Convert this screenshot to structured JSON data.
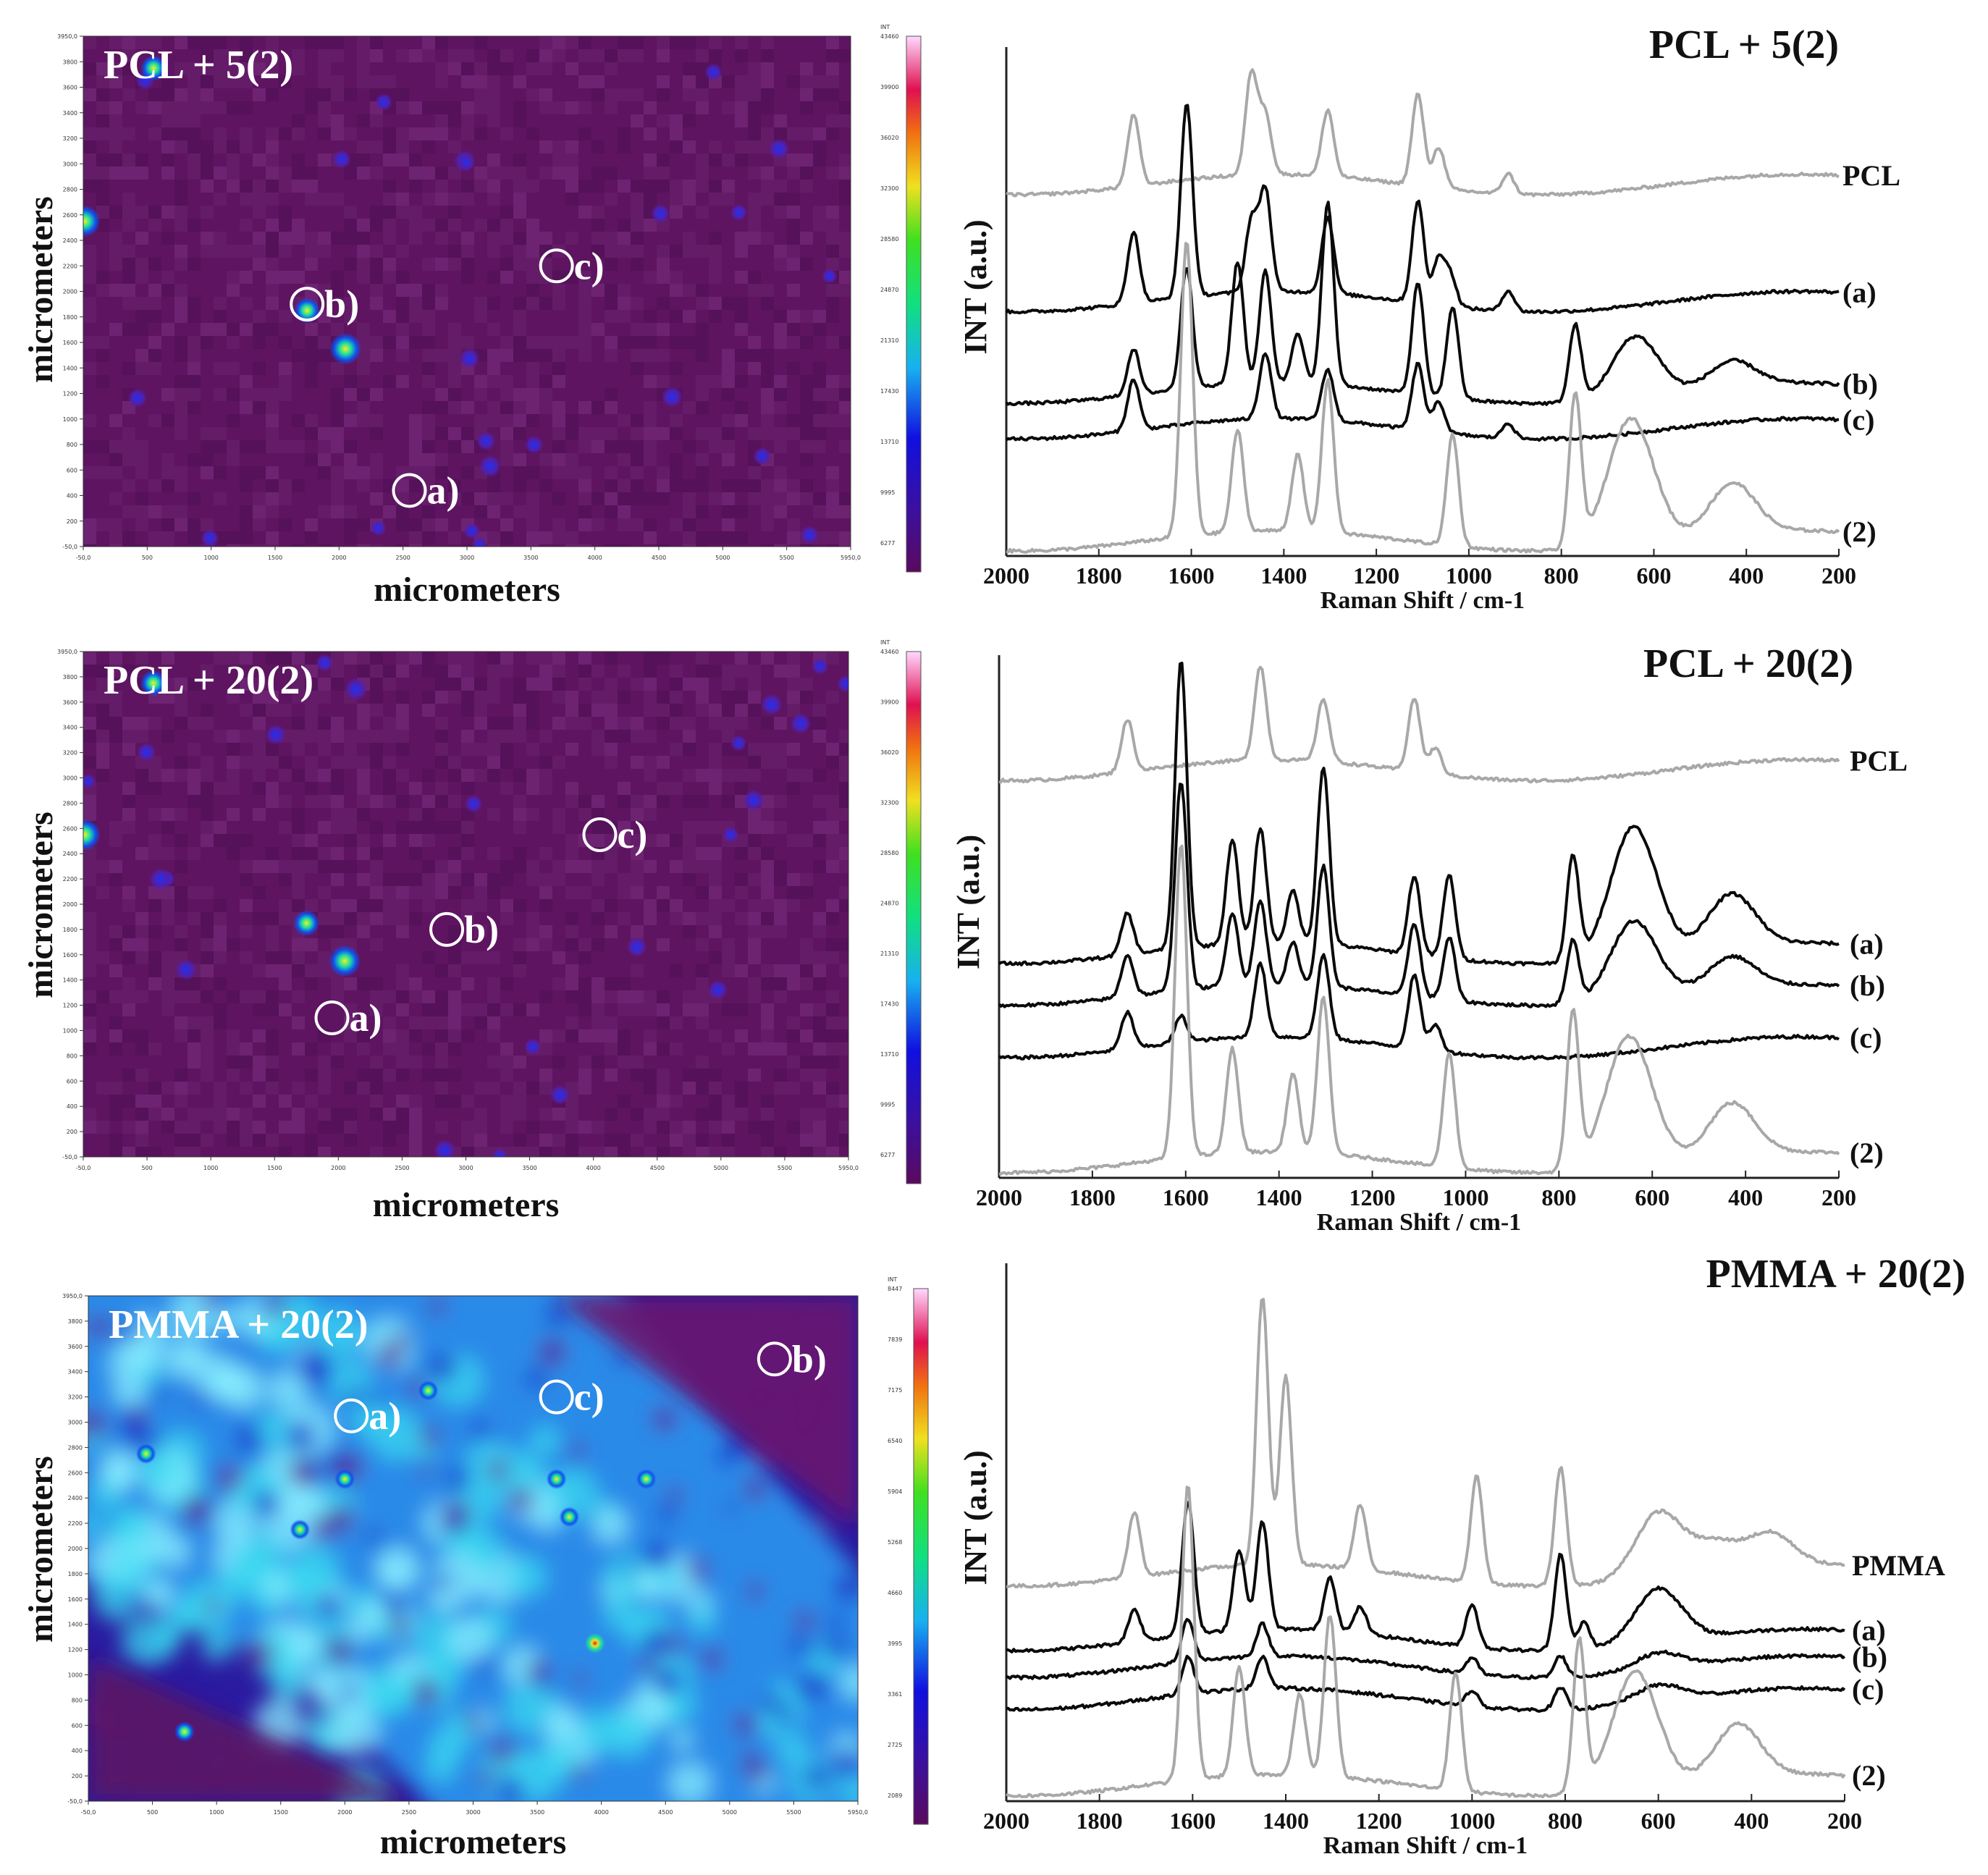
{
  "figure": {
    "map_axis_label": "micrometers",
    "spectrum_ylabel": "INT (a.u.)",
    "spectrum_xlabel": "Raman Shift / cm-1",
    "colorbar_header": "INT",
    "colors": {
      "map_bg": "#5e1460",
      "map_bg_dark": "#4a0c50",
      "spec_black": "#0a0a0a",
      "spec_gray": "#a8a8a8",
      "pmma_cyan": "#38d8f0",
      "pmma_blue": "#1a3cd8"
    }
  },
  "chart_data": [
    {
      "type": "heatmap",
      "title": "PCL + 5(2)",
      "xlabel": "micrometers",
      "ylabel": "micrometers",
      "x_ticks": [
        "-50,0",
        "500",
        "1000",
        "1500",
        "2000",
        "2500",
        "3000",
        "3500",
        "4000",
        "4500",
        "5000",
        "5500",
        "5950,0"
      ],
      "y_ticks": [
        "3950,0",
        "3800",
        "3600",
        "3400",
        "3200",
        "3000",
        "2800",
        "2600",
        "2400",
        "2200",
        "2000",
        "1800",
        "1600",
        "1400",
        "1200",
        "1000",
        "800",
        "600",
        "400",
        "200",
        "-50,0"
      ],
      "colorbar_ticks": [
        "43460",
        "39900",
        "36020",
        "32300",
        "28580",
        "24870",
        "21310",
        "17430",
        "13710",
        "9995",
        "6277"
      ],
      "points": [
        {
          "label": "a)",
          "x": 2500,
          "y": 390
        },
        {
          "label": "b)",
          "x": 1700,
          "y": 1850
        },
        {
          "label": "c)",
          "x": 3650,
          "y": 2150
        }
      ]
    },
    {
      "type": "line",
      "title": "PCL + 5(2)",
      "xlabel": "Raman Shift / cm-1",
      "ylabel": "INT (a.u.)",
      "x_ticks": [
        "2000",
        "1800",
        "1600",
        "1400",
        "1200",
        "1000",
        "800",
        "600",
        "400",
        "200"
      ],
      "xlim": [
        2000,
        200
      ],
      "series": [
        {
          "name": "PCL",
          "color": "gray",
          "offset": 0.73,
          "peaks": [
            [
              1725,
              0.14
            ],
            [
              1470,
              0.2
            ],
            [
              1440,
              0.12
            ],
            [
              1305,
              0.13
            ],
            [
              1110,
              0.18
            ],
            [
              1065,
              0.08
            ],
            [
              915,
              0.04
            ]
          ]
        },
        {
          "name": "(a)",
          "color": "black",
          "offset": 0.5,
          "peaks": [
            [
              1725,
              0.14
            ],
            [
              1610,
              0.38
            ],
            [
              1440,
              0.2
            ],
            [
              1470,
              0.14
            ],
            [
              1305,
              0.15
            ],
            [
              1110,
              0.2
            ],
            [
              1065,
              0.09
            ],
            [
              1040,
              0.06
            ],
            [
              915,
              0.04
            ]
          ]
        },
        {
          "name": "(b)",
          "color": "black",
          "offset": 0.32,
          "peaks": [
            [
              1725,
              0.09
            ],
            [
              1610,
              0.24
            ],
            [
              1500,
              0.24
            ],
            [
              1440,
              0.22
            ],
            [
              1370,
              0.1
            ],
            [
              1305,
              0.36
            ],
            [
              1110,
              0.22
            ],
            [
              1035,
              0.18
            ],
            [
              770,
              0.15
            ],
            [
              640,
              0.12
            ],
            [
              430,
              0.05
            ]
          ]
        },
        {
          "name": "(c)",
          "color": "black",
          "offset": 0.25,
          "peaks": [
            [
              1725,
              0.1
            ],
            [
              1440,
              0.13
            ],
            [
              1305,
              0.1
            ],
            [
              1110,
              0.13
            ],
            [
              1065,
              0.06
            ],
            [
              915,
              0.03
            ]
          ]
        },
        {
          "name": "(2)",
          "color": "gray",
          "offset": 0.03,
          "peaks": [
            [
              1610,
              0.58
            ],
            [
              1500,
              0.2
            ],
            [
              1370,
              0.15
            ],
            [
              1305,
              0.3
            ],
            [
              1035,
              0.22
            ],
            [
              770,
              0.3
            ],
            [
              650,
              0.25
            ],
            [
              430,
              0.1
            ]
          ]
        }
      ]
    },
    {
      "type": "heatmap",
      "title": "PCL + 20(2)",
      "xlabel": "micrometers",
      "ylabel": "micrometers",
      "x_ticks": [
        "-50,0",
        "500",
        "1000",
        "1500",
        "2000",
        "2500",
        "3000",
        "3500",
        "4000",
        "4500",
        "5000",
        "5500",
        "5950,0"
      ],
      "y_ticks": [
        "3950,0",
        "3800",
        "3600",
        "3400",
        "3200",
        "3000",
        "2800",
        "2600",
        "2400",
        "2200",
        "2000",
        "1800",
        "1600",
        "1400",
        "1200",
        "1000",
        "800",
        "600",
        "400",
        "200",
        "-50,0"
      ],
      "colorbar_ticks": [
        "43460",
        "39900",
        "36020",
        "32300",
        "28580",
        "24870",
        "21310",
        "17430",
        "13710",
        "9995",
        "6277"
      ],
      "points": [
        {
          "label": "a)",
          "x": 1900,
          "y": 1050
        },
        {
          "label": "b)",
          "x": 2800,
          "y": 1750
        },
        {
          "label": "c)",
          "x": 4000,
          "y": 2500
        }
      ]
    },
    {
      "type": "line",
      "title": "PCL + 20(2)",
      "xlabel": "Raman Shift / cm-1",
      "ylabel": "INT (a.u.)",
      "x_ticks": [
        "2000",
        "1800",
        "1600",
        "1400",
        "1200",
        "1000",
        "800",
        "600",
        "400",
        "200"
      ],
      "xlim": [
        2000,
        200
      ],
      "series": [
        {
          "name": "PCL",
          "color": "gray",
          "offset": 0.78,
          "peaks": [
            [
              1725,
              0.1
            ],
            [
              1440,
              0.18
            ],
            [
              1305,
              0.12
            ],
            [
              1110,
              0.14
            ],
            [
              1065,
              0.05
            ]
          ]
        },
        {
          "name": "(a)",
          "color": "black",
          "offset": 0.43,
          "peaks": [
            [
              1725,
              0.08
            ],
            [
              1610,
              0.55
            ],
            [
              1500,
              0.2
            ],
            [
              1440,
              0.22
            ],
            [
              1370,
              0.1
            ],
            [
              1305,
              0.34
            ],
            [
              1110,
              0.15
            ],
            [
              1035,
              0.16
            ],
            [
              770,
              0.2
            ],
            [
              640,
              0.25
            ],
            [
              430,
              0.1
            ]
          ]
        },
        {
          "name": "(b)",
          "color": "black",
          "offset": 0.35,
          "peaks": [
            [
              1725,
              0.08
            ],
            [
              1610,
              0.4
            ],
            [
              1500,
              0.14
            ],
            [
              1440,
              0.16
            ],
            [
              1370,
              0.08
            ],
            [
              1305,
              0.23
            ],
            [
              1110,
              0.14
            ],
            [
              1035,
              0.12
            ],
            [
              770,
              0.12
            ],
            [
              640,
              0.15
            ],
            [
              430,
              0.06
            ]
          ]
        },
        {
          "name": "(c)",
          "color": "black",
          "offset": 0.25,
          "peaks": [
            [
              1725,
              0.07
            ],
            [
              1610,
              0.05
            ],
            [
              1440,
              0.14
            ],
            [
              1305,
              0.16
            ],
            [
              1110,
              0.14
            ],
            [
              1065,
              0.05
            ]
          ]
        },
        {
          "name": "(2)",
          "color": "gray",
          "offset": 0.03,
          "peaks": [
            [
              1610,
              0.6
            ],
            [
              1500,
              0.2
            ],
            [
              1370,
              0.15
            ],
            [
              1305,
              0.3
            ],
            [
              1035,
              0.22
            ],
            [
              770,
              0.3
            ],
            [
              650,
              0.25
            ],
            [
              430,
              0.1
            ]
          ]
        }
      ]
    },
    {
      "type": "heatmap",
      "title": "PMMA + 20(2)",
      "xlabel": "micrometers",
      "ylabel": "micrometers",
      "x_ticks": [
        "-50,0",
        "500",
        "1000",
        "1500",
        "2000",
        "2500",
        "3000",
        "3500",
        "4000",
        "4500",
        "5000",
        "5500",
        "5950,0"
      ],
      "y_ticks": [
        "3950,0",
        "3800",
        "3600",
        "3400",
        "3200",
        "3000",
        "2800",
        "2600",
        "2400",
        "2200",
        "2000",
        "1800",
        "1600",
        "1400",
        "1200",
        "1000",
        "800",
        "600",
        "400",
        "200",
        "-50,0"
      ],
      "colorbar_ticks": [
        "8447",
        "7839",
        "7175",
        "6540",
        "5904",
        "5268",
        "4660",
        "3995",
        "3361",
        "2725",
        "2089"
      ],
      "points": [
        {
          "label": "a)",
          "x": 2000,
          "y": 3000
        },
        {
          "label": "b)",
          "x": 5300,
          "y": 3450
        },
        {
          "label": "c)",
          "x": 3600,
          "y": 3150
        }
      ]
    },
    {
      "type": "line",
      "title": "PMMA + 20(2)",
      "xlabel": "Raman Shift / cm-1",
      "ylabel": "INT (a.u.)",
      "x_ticks": [
        "2000",
        "1800",
        "1600",
        "1400",
        "1200",
        "1000",
        "800",
        "600",
        "400",
        "200"
      ],
      "xlim": [
        2000,
        200
      ],
      "series": [
        {
          "name": "PMMA",
          "color": "gray",
          "offset": 0.42,
          "peaks": [
            [
              1725,
              0.12
            ],
            [
              1450,
              0.5
            ],
            [
              1400,
              0.35
            ],
            [
              1240,
              0.12
            ],
            [
              990,
              0.2
            ],
            [
              810,
              0.22
            ],
            [
              600,
              0.12
            ],
            [
              480,
              0.05
            ],
            [
              360,
              0.06
            ]
          ]
        },
        {
          "name": "(a)",
          "color": "black",
          "offset": 0.3,
          "peaks": [
            [
              1725,
              0.06
            ],
            [
              1610,
              0.25
            ],
            [
              1500,
              0.15
            ],
            [
              1450,
              0.2
            ],
            [
              1305,
              0.1
            ],
            [
              1240,
              0.05
            ],
            [
              1000,
              0.08
            ],
            [
              810,
              0.18
            ],
            [
              760,
              0.05
            ],
            [
              600,
              0.1
            ]
          ]
        },
        {
          "name": "(b)",
          "color": "black",
          "offset": 0.25,
          "peaks": [
            [
              1610,
              0.08
            ],
            [
              1450,
              0.06
            ],
            [
              1000,
              0.03
            ],
            [
              810,
              0.04
            ],
            [
              600,
              0.03
            ]
          ]
        },
        {
          "name": "(c)",
          "color": "black",
          "offset": 0.19,
          "peaks": [
            [
              1610,
              0.07
            ],
            [
              1450,
              0.06
            ],
            [
              1000,
              0.03
            ],
            [
              810,
              0.04
            ],
            [
              600,
              0.03
            ]
          ]
        },
        {
          "name": "(2)",
          "color": "gray",
          "offset": 0.03,
          "peaks": [
            [
              1610,
              0.55
            ],
            [
              1500,
              0.2
            ],
            [
              1370,
              0.15
            ],
            [
              1305,
              0.3
            ],
            [
              1035,
              0.22
            ],
            [
              770,
              0.28
            ],
            [
              650,
              0.22
            ],
            [
              430,
              0.1
            ]
          ]
        }
      ]
    }
  ]
}
